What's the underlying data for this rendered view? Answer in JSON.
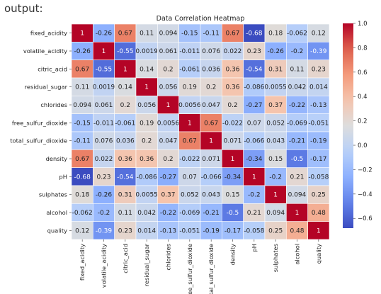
{
  "prompt_text": "output:",
  "chart_data": {
    "type": "heatmap",
    "title": "Data Correlation Heatmap",
    "labels": [
      "fixed_acidity",
      "volatile_acidity",
      "citric_acid",
      "residual_sugar",
      "chlorides",
      "free_sulfur_dioxide",
      "total_sulfur_dioxide",
      "density",
      "pH",
      "sulphates",
      "alcohol",
      "quality"
    ],
    "display": [
      [
        "1",
        "-0.26",
        "0.67",
        "0.11",
        "0.094",
        "-0.15",
        "-0.11",
        "0.67",
        "-0.68",
        "0.18",
        "-0.062",
        "0.12"
      ],
      [
        "-0.26",
        "1",
        "-0.55",
        "0.0019",
        "0.061",
        "-0.011",
        "0.076",
        "0.022",
        "0.23",
        "-0.26",
        "-0.2",
        "-0.39"
      ],
      [
        "0.67",
        "-0.55",
        "1",
        "0.14",
        "0.2",
        "-0.061",
        "0.036",
        "0.36",
        "-0.54",
        "0.31",
        "0.11",
        "0.23"
      ],
      [
        "0.11",
        "0.0019",
        "0.14",
        "1",
        "0.056",
        "0.19",
        "0.2",
        "0.36",
        "-0.086",
        "0.0055",
        "0.042",
        "0.014"
      ],
      [
        "0.094",
        "0.061",
        "0.2",
        "0.056",
        "1",
        "0.0056",
        "0.047",
        "0.2",
        "-0.27",
        "0.37",
        "-0.22",
        "-0.13"
      ],
      [
        "-0.15",
        "-0.011",
        "-0.061",
        "0.19",
        "0.0056",
        "1",
        "0.67",
        "-0.022",
        "0.07",
        "0.052",
        "-0.069",
        "-0.051"
      ],
      [
        "-0.11",
        "0.076",
        "0.036",
        "0.2",
        "0.047",
        "0.67",
        "1",
        "0.071",
        "-0.066",
        "0.043",
        "-0.21",
        "-0.19"
      ],
      [
        "0.67",
        "0.022",
        "0.36",
        "0.36",
        "0.2",
        "-0.022",
        "0.071",
        "1",
        "-0.34",
        "0.15",
        "-0.5",
        "-0.17"
      ],
      [
        "-0.68",
        "0.23",
        "-0.54",
        "-0.086",
        "-0.27",
        "0.07",
        "-0.066",
        "-0.34",
        "1",
        "-0.2",
        "0.21",
        "-0.058"
      ],
      [
        "0.18",
        "-0.26",
        "0.31",
        "0.0055",
        "0.37",
        "0.052",
        "0.043",
        "0.15",
        "-0.2",
        "1",
        "0.094",
        "0.25"
      ],
      [
        "-0.062",
        "-0.2",
        "0.11",
        "0.042",
        "-0.22",
        "-0.069",
        "-0.21",
        "-0.5",
        "0.21",
        "0.094",
        "1",
        "0.48"
      ],
      [
        "0.12",
        "-0.39",
        "0.23",
        "0.014",
        "-0.13",
        "-0.051",
        "-0.19",
        "-0.17",
        "-0.058",
        "0.25",
        "0.48",
        "1"
      ]
    ],
    "colorbar": {
      "vmin": -0.68,
      "vmax": 1.0,
      "ticks": [
        1.0,
        0.8,
        0.6,
        0.4,
        0.2,
        0.0,
        -0.2,
        -0.4,
        -0.6
      ],
      "tick_labels": [
        "1.0",
        "0.8",
        "0.6",
        "0.4",
        "0.2",
        "0.0",
        "−0.2",
        "−0.4",
        "−0.6"
      ],
      "colormap": "coolwarm"
    }
  }
}
